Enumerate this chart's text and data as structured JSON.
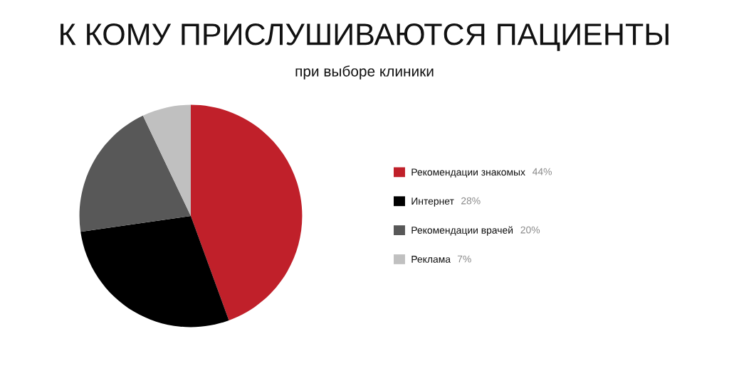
{
  "chart_data": {
    "type": "pie",
    "title": "К КОМУ ПРИСЛУШИВАЮТСЯ ПАЦИЕНТЫ",
    "subtitle": "при выборе клиники",
    "categories": [
      "Рекомендации знакомых",
      "Интернет",
      "Рекомендации врачей",
      "Реклама"
    ],
    "values": [
      44,
      28,
      20,
      7
    ],
    "colors": [
      "#c0202a",
      "#000000",
      "#585858",
      "#c0c0c0"
    ],
    "value_labels": [
      "44%",
      "28%",
      "20%",
      "7%"
    ],
    "legend": "right"
  }
}
